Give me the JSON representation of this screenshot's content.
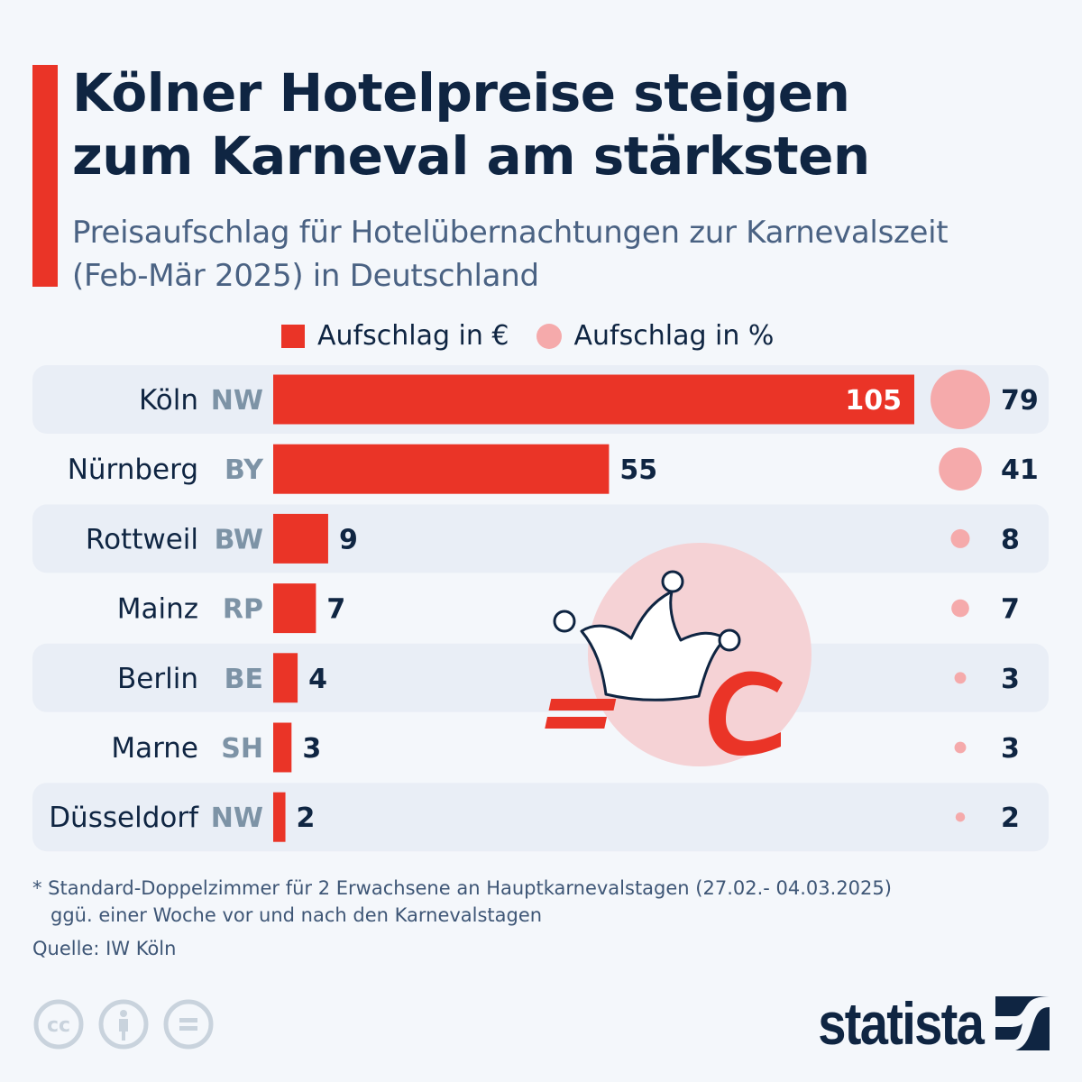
{
  "header": {
    "title_line1": "Kölner Hotelpreise steigen",
    "title_line2": "zum Karneval am stärksten",
    "subtitle_line1": "Preisaufschlag für Hotelübernachtungen zur Karnevalszeit",
    "subtitle_line2": "(Feb-Mär 2025) in Deutschland"
  },
  "colors": {
    "accent": "#ea3427",
    "bar": "#ea3427",
    "bubble": "#f5aaab",
    "text_dark": "#0f2542",
    "state_code": "#7d93a6",
    "row_shade": "#e9eef6",
    "background": "#f4f7fb"
  },
  "chart_data": {
    "type": "bar",
    "title": "Kölner Hotelpreise steigen zum Karneval am stärksten",
    "subtitle": "Preisaufschlag für Hotelübernachtungen zur Karnevalszeit (Feb-Mär 2025) in Deutschland",
    "orientation": "horizontal",
    "categories": [
      "Köln",
      "Nürnberg",
      "Rottweil",
      "Mainz",
      "Berlin",
      "Marne",
      "Düsseldorf"
    ],
    "state_codes": [
      "NW",
      "BY",
      "BW",
      "RP",
      "BE",
      "SH",
      "NW"
    ],
    "series": [
      {
        "name": "Aufschlag in €",
        "type": "bar",
        "values": [
          105,
          55,
          9,
          7,
          4,
          3,
          2
        ]
      },
      {
        "name": "Aufschlag in %",
        "type": "bubble",
        "values": [
          79,
          41,
          8,
          7,
          3,
          3,
          2
        ]
      }
    ],
    "xlim": [
      0,
      105
    ],
    "legend": {
      "position": "top",
      "entries": [
        "Aufschlag in €",
        "Aufschlag in %"
      ]
    },
    "grid": false,
    "xlabel": "",
    "ylabel": ""
  },
  "legend": {
    "euro_label": "Aufschlag in €",
    "percent_label": "Aufschlag in %"
  },
  "footer": {
    "footnote_line1": "* Standard-Doppelzimmer für 2 Erwachsene an Hauptkarnevalstagen (27.02.- 04.03.2025)",
    "footnote_line2": "ggü. einer Woche vor und nach den Karnevalstagen",
    "source": "Quelle: IW Köln",
    "license_icons": [
      "cc-icon",
      "attribution-icon",
      "no-derivatives-icon"
    ],
    "brand": "statista"
  },
  "illustration": {
    "icons": [
      "jester-hat-icon",
      "euro-icon"
    ]
  }
}
